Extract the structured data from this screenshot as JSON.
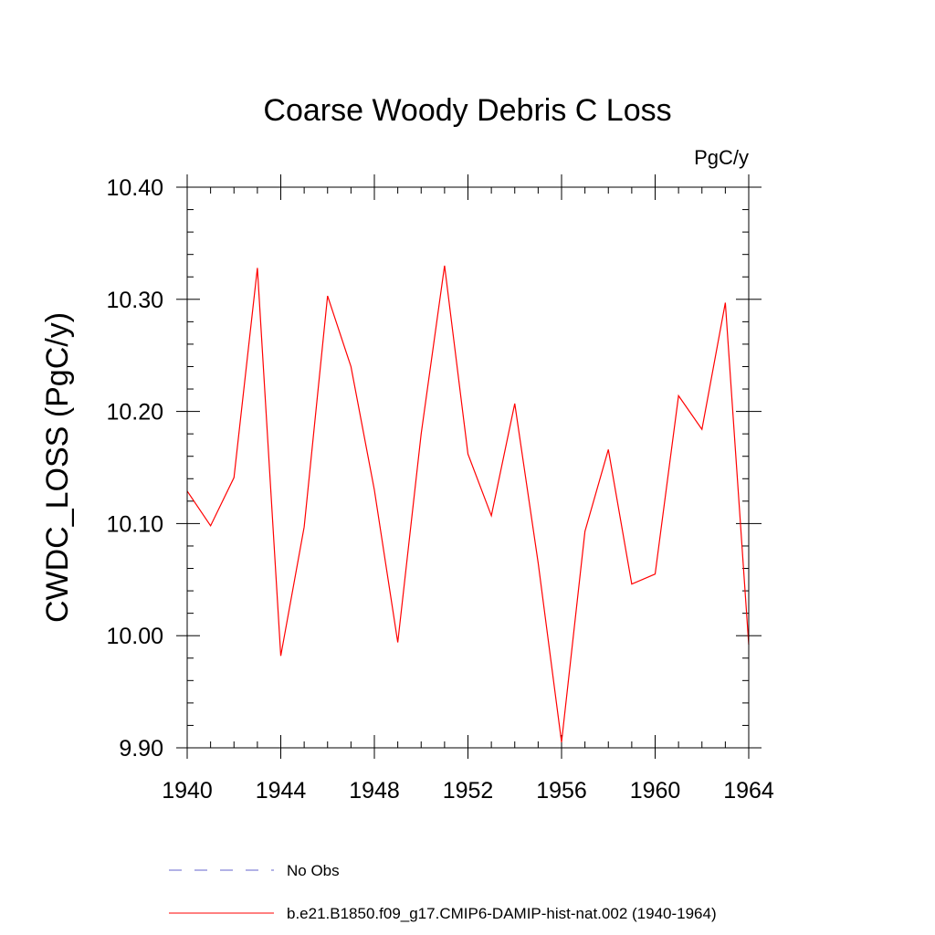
{
  "chart_data": {
    "type": "line",
    "title": "Coarse Woody Debris C Loss",
    "units": "PgC/y",
    "ylabel": "CWDC_LOSS  (PgC/y)",
    "xlabel": "",
    "xlim": [
      1940,
      1964
    ],
    "ylim": [
      9.9,
      10.4
    ],
    "x_ticks": [
      1940,
      1944,
      1948,
      1952,
      1956,
      1960,
      1964
    ],
    "x_tick_labels": [
      "1940",
      "1944",
      "1948",
      "1952",
      "1956",
      "1960",
      "1964"
    ],
    "y_ticks": [
      9.9,
      10.0,
      10.1,
      10.2,
      10.3,
      10.4
    ],
    "y_tick_labels": [
      "9.90",
      "10.00",
      "10.10",
      "10.20",
      "10.30",
      "10.40"
    ],
    "grid": false,
    "legend_placement": "bottom",
    "series": [
      {
        "name": "No Obs",
        "color": "#6666cc",
        "style": "dashed",
        "x": [],
        "values": []
      },
      {
        "name": "b.e21.B1850.f09_g17.CMIP6-DAMIP-hist-nat.002 (1940-1964)",
        "color": "#ff0000",
        "style": "solid",
        "x": [
          1940,
          1941,
          1942,
          1943,
          1944,
          1945,
          1946,
          1947,
          1948,
          1949,
          1950,
          1951,
          1952,
          1953,
          1954,
          1955,
          1956,
          1957,
          1958,
          1959,
          1960,
          1961,
          1962,
          1963,
          1964
        ],
        "values": [
          10.129,
          10.098,
          10.141,
          10.328,
          9.982,
          10.097,
          10.303,
          10.24,
          10.13,
          9.994,
          10.18,
          10.33,
          10.162,
          10.107,
          10.207,
          10.065,
          9.905,
          10.093,
          10.166,
          10.046,
          10.055,
          10.214,
          10.184,
          10.297,
          9.992
        ]
      }
    ]
  }
}
